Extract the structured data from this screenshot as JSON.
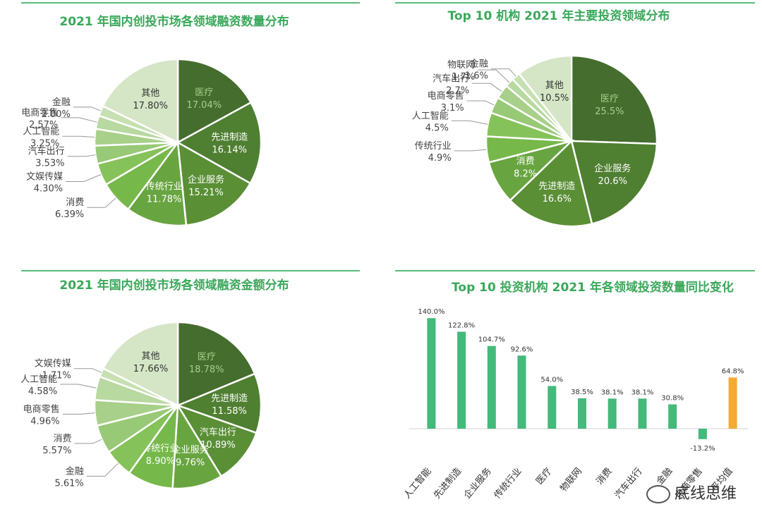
{
  "colors": {
    "title": "#3aa85a",
    "rule": "#58bb78",
    "pie": [
      "#456d2d",
      "#4f7f31",
      "#5a8f36",
      "#68a540",
      "#76b84a",
      "#86c25a",
      "#98c977",
      "#a8d08a",
      "#b8d9a0",
      "#c6e0b2",
      "#d4e6c6"
    ],
    "bar_positive": "#43b97a",
    "bar_highlight": "#f3ab32"
  },
  "watermark": "底线思维",
  "chart_data": [
    {
      "type": "pie",
      "title": "2021 年国内创投市场各领域融资数量分布",
      "unit": "%",
      "slices": [
        {
          "label": "医疗",
          "value": 17.04,
          "text": "17.04%"
        },
        {
          "label": "先进制造",
          "value": 16.14,
          "text": "16.14%"
        },
        {
          "label": "企业服务",
          "value": 15.21,
          "text": "15.21%"
        },
        {
          "label": "传统行业",
          "value": 11.78,
          "text": "11.78%"
        },
        {
          "label": "消费",
          "value": 6.39,
          "text": "6.39%"
        },
        {
          "label": "文娱传媒",
          "value": 4.3,
          "text": "4.30%"
        },
        {
          "label": "汽车出行",
          "value": 3.53,
          "text": "3.53%"
        },
        {
          "label": "人工智能",
          "value": 3.25,
          "text": "3.25%"
        },
        {
          "label": "电商零售",
          "value": 2.57,
          "text": "2.57%"
        },
        {
          "label": "金融",
          "value": 2.0,
          "text": "2.00%"
        },
        {
          "label": "其他",
          "value": 17.8,
          "text": "17.80%"
        }
      ]
    },
    {
      "type": "pie",
      "title": "Top 10 机构 2021 年主要投资领域分布",
      "unit": "%",
      "slices": [
        {
          "label": "医疗",
          "value": 25.5,
          "text": "25.5%"
        },
        {
          "label": "企业服务",
          "value": 20.6,
          "text": "20.6%"
        },
        {
          "label": "先进制造",
          "value": 16.6,
          "text": "16.6%"
        },
        {
          "label": "消费",
          "value": 8.2,
          "text": "8.2%"
        },
        {
          "label": "传统行业",
          "value": 4.9,
          "text": "4.9%"
        },
        {
          "label": "人工智能",
          "value": 4.5,
          "text": "4.5%"
        },
        {
          "label": "电商零售",
          "value": 3.1,
          "text": "3.1%"
        },
        {
          "label": "汽车出行",
          "value": 2.7,
          "text": "2.7%"
        },
        {
          "label": "物联网",
          "value": 1.7,
          "text": "1.7%"
        },
        {
          "label": "金融",
          "value": 1.6,
          "text": "1.6%"
        },
        {
          "label": "其他",
          "value": 10.5,
          "text": "10.5%"
        }
      ]
    },
    {
      "type": "pie",
      "title": "2021 年国内创投市场各领域融资金额分布",
      "unit": "%",
      "slices": [
        {
          "label": "医疗",
          "value": 18.78,
          "text": "18.78%"
        },
        {
          "label": "先进制造",
          "value": 11.58,
          "text": "11.58%"
        },
        {
          "label": "汽车出行",
          "value": 10.89,
          "text": "10.89%"
        },
        {
          "label": "企业服务",
          "value": 9.76,
          "text": "9.76%"
        },
        {
          "label": "传统行业",
          "value": 8.9,
          "text": "8.90%"
        },
        {
          "label": "金融",
          "value": 5.61,
          "text": "5.61%"
        },
        {
          "label": "消费",
          "value": 5.57,
          "text": "5.57%"
        },
        {
          "label": "电商零售",
          "value": 4.96,
          "text": "4.96%"
        },
        {
          "label": "人工智能",
          "value": 4.58,
          "text": "4.58%"
        },
        {
          "label": "文娱传媒",
          "value": 1.71,
          "text": "1.71%"
        },
        {
          "label": "其他",
          "value": 17.66,
          "text": "17.66%"
        }
      ]
    },
    {
      "type": "bar",
      "title": "Top 10 投资机构 2021 年各领域投资数量同比变化",
      "unit": "%",
      "categories": [
        "人工智能",
        "先进制造",
        "企业服务",
        "传统行业",
        "医疗",
        "物联网",
        "消费",
        "汽车出行",
        "金融",
        "电商零售",
        "平均值"
      ],
      "values": [
        140.0,
        122.8,
        104.7,
        92.6,
        54.0,
        38.5,
        38.1,
        38.1,
        30.8,
        -13.2,
        64.8
      ],
      "value_labels": [
        "140.0%",
        "122.8%",
        "104.7%",
        "92.6%",
        "54.0%",
        "38.5%",
        "38.1%",
        "38.1%",
        "30.8%",
        "-13.2%",
        "64.8%"
      ],
      "highlight_index": 10,
      "ylim": [
        -20,
        150
      ]
    }
  ]
}
